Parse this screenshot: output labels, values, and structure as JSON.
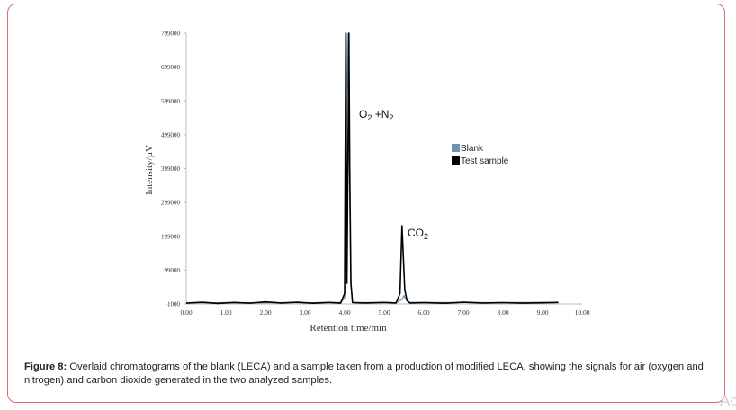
{
  "chart_data": {
    "type": "line",
    "xlabel": "Retention time/min",
    "ylabel": "Intensity/µV",
    "xlim": [
      0,
      10
    ],
    "ylim": [
      -1000,
      799000
    ],
    "x_ticks": [
      "0.00",
      "1.00",
      "2.00",
      "3.00",
      "4.00",
      "5.00",
      "6.00",
      "7.00",
      "8.00",
      "9.00",
      "10.00"
    ],
    "y_ticks": [
      "799000",
      "699000",
      "599000",
      "499000",
      "399000",
      "299000",
      "199000",
      "99000",
      "-1000"
    ],
    "annotations": {
      "o2n2": {
        "main": "O",
        "sub1": "2",
        "mid": " +N",
        "sub2": "2"
      },
      "co2": {
        "main": "CO",
        "sub": "2"
      }
    },
    "legend_position": "right",
    "series": [
      {
        "name": "Blank",
        "color": "#6f93b2",
        "x": [
          0.0,
          0.5,
          1.0,
          1.5,
          2.0,
          2.5,
          3.0,
          3.5,
          3.9,
          4.0,
          4.04,
          4.07,
          4.12,
          4.16,
          4.2,
          4.5,
          5.3,
          5.45,
          5.5,
          5.55,
          5.65,
          6.0,
          7.0,
          8.0,
          9.0,
          9.4
        ],
        "y": [
          2000,
          2500,
          3000,
          2000,
          2500,
          3000,
          2500,
          3000,
          3500,
          15000,
          400000,
          799000,
          400000,
          60000,
          4000,
          3000,
          3000,
          12000,
          24000,
          12000,
          4000,
          3500,
          3000,
          3000,
          3500,
          3000
        ]
      },
      {
        "name": "Test sample",
        "color": "#000000",
        "x": [
          0.0,
          0.4,
          0.8,
          1.2,
          1.6,
          2.0,
          2.4,
          2.8,
          3.2,
          3.6,
          3.9,
          4.0,
          4.03,
          4.06,
          4.11,
          4.13,
          4.16,
          4.2,
          4.5,
          5.0,
          5.3,
          5.4,
          5.45,
          5.48,
          5.52,
          5.58,
          5.65,
          6.0,
          6.5,
          7.0,
          7.5,
          8.0,
          8.5,
          9.0,
          9.4
        ],
        "y": [
          1500,
          4000,
          500,
          3500,
          1500,
          5000,
          2000,
          4000,
          1000,
          3500,
          1500,
          30000,
          799000,
          60000,
          799000,
          400000,
          60000,
          3000,
          2000,
          3500,
          2000,
          30000,
          230000,
          150000,
          40000,
          8000,
          2000,
          3000,
          1000,
          4000,
          2000,
          3000,
          1500,
          2500,
          3500
        ]
      }
    ]
  },
  "caption": {
    "label": "Figure 8:",
    "text": " Overlaid chromatograms of the blank (LECA) and a sample taken from a production of modified LECA, showing the signals for air (oxygen and nitrogen) and carbon dioxide generated in the two analyzed samples."
  },
  "watermark": "Ac"
}
